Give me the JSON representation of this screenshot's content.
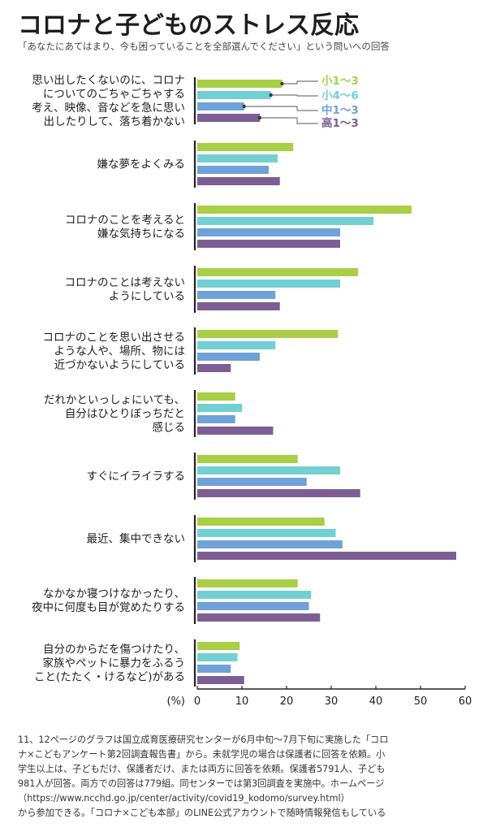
{
  "title": "コロナと子どものストレス反応",
  "subtitle": "「あなたにあてはまり、今も困っていることを全部選んでください」という問いへの回答",
  "chart_data": {
    "type": "bar",
    "orientation": "horizontal",
    "unit_label": "(%)",
    "xlim": [
      0,
      60
    ],
    "xticks": [
      0,
      10,
      20,
      30,
      40,
      50,
      60
    ],
    "legend_placement": "top-right (callouts on first group)",
    "categories": [
      [
        "思い出したくないのに、コロナ",
        "についてのごちゃごちゃする",
        "考え、映像、音などを急に思い",
        "出したりして、落ち着かない"
      ],
      [
        "嫌な夢をよくみる"
      ],
      [
        "コロナのことを考えると",
        "嫌な気持ちになる"
      ],
      [
        "コロナのことは考えない",
        "ようにしている"
      ],
      [
        "コロナのことを思い出させる",
        "ような人や、場所、物には",
        "近づかないようにしている"
      ],
      [
        "だれかといっしょにいても、",
        "自分はひとりぼっちだと",
        "感じる"
      ],
      [
        "すぐにイライラする"
      ],
      [
        "最近、集中できない"
      ],
      [
        "なかなか寝つけなかったり、",
        "夜中に何度も目が覚めたりする"
      ],
      [
        "自分のからだを傷つけたり、",
        "家族やペットに暴力をふるう",
        "こと(たたく・けるなど)がある"
      ]
    ],
    "series": [
      {
        "name": "小1～3",
        "color": "#a8cf45",
        "values": [
          19,
          21.5,
          48,
          36,
          31.5,
          8.5,
          22.5,
          28.5,
          22.5,
          9.5
        ]
      },
      {
        "name": "小4～6",
        "color": "#72d0d2",
        "values": [
          16.5,
          18,
          39.5,
          32,
          17.5,
          10,
          32,
          31,
          25.5,
          9
        ]
      },
      {
        "name": "中1～3",
        "color": "#6ea2d8",
        "values": [
          10.5,
          16,
          32,
          17.5,
          14,
          8.5,
          24.5,
          32.5,
          25,
          7.5
        ]
      },
      {
        "name": "高1～3",
        "color": "#7c5e94",
        "values": [
          14,
          18.5,
          32,
          18.5,
          7.5,
          17,
          36.5,
          58,
          27.5,
          10.5
        ]
      }
    ]
  },
  "footnote": [
    "11、12ページのグラフは国立成育医療研究センターが6月中旬～7月下旬に実施した「コロ",
    "ナ×こどもアンケート第2回調査報告書」から。未就学児の場合は保護者に回答を依頼。小",
    "学生以上は、子どもだけ、保護者だけ、または両方に回答を依頼。保護者5791人、子ども",
    "981人が回答。両方での回答は779組。同センターでは第3回調査を実施中。ホームページ",
    "（https://www.ncchd.go.jp/center/activity/covid19_kodomo/survey.html）",
    "から参加できる。「コロナ×こども本部」のLINE公式アカウントで随時情報発信もしている"
  ]
}
